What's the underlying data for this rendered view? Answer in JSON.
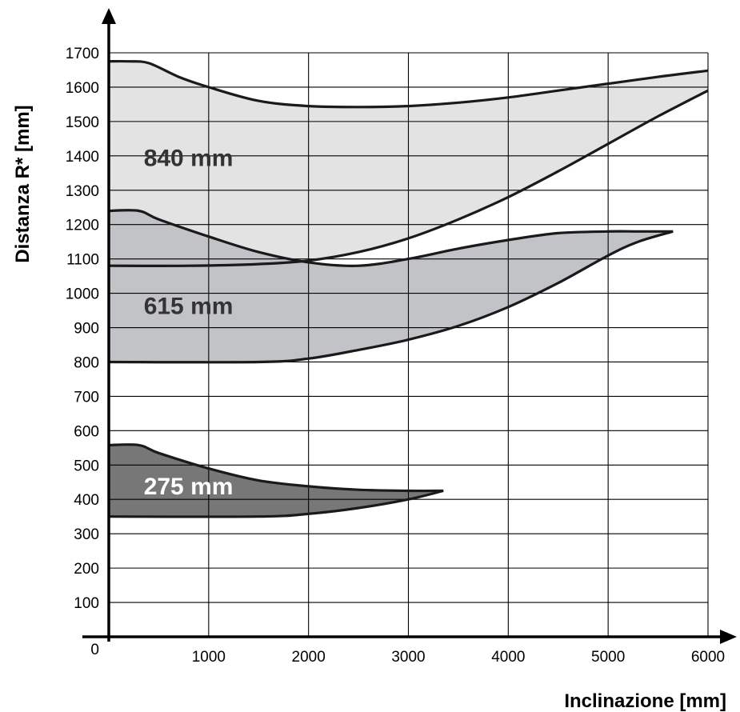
{
  "chart_data": {
    "type": "area",
    "title": "",
    "xlabel": "Inclinazione [mm]",
    "ylabel": "Distanza R* [mm]",
    "xlim": [
      0,
      6000
    ],
    "ylim": [
      0,
      1700
    ],
    "x_ticks": [
      1000,
      2000,
      3000,
      4000,
      5000,
      6000
    ],
    "y_ticks": [
      100,
      200,
      300,
      400,
      500,
      600,
      700,
      800,
      900,
      1000,
      1100,
      1200,
      1300,
      1400,
      1500,
      1600,
      1700
    ],
    "origin_label": "0",
    "grid": true,
    "colors": {
      "840": "#e3e3e3",
      "615": "#c2c3c7",
      "275": "#777777",
      "outline": "#1a1a1a",
      "grid": "#000000"
    },
    "series": [
      {
        "name": "840 mm",
        "upper": [
          [
            0,
            1675
          ],
          [
            200,
            1675
          ],
          [
            400,
            1670
          ],
          [
            700,
            1630
          ],
          [
            1000,
            1600
          ],
          [
            1500,
            1560
          ],
          [
            2000,
            1545
          ],
          [
            2500,
            1542
          ],
          [
            3000,
            1545
          ],
          [
            3500,
            1555
          ],
          [
            4000,
            1570
          ],
          [
            4500,
            1590
          ],
          [
            5000,
            1610
          ],
          [
            5500,
            1630
          ],
          [
            6000,
            1648
          ]
        ],
        "lower": [
          [
            0,
            1080
          ],
          [
            800,
            1080
          ],
          [
            1500,
            1085
          ],
          [
            2000,
            1095
          ],
          [
            2500,
            1120
          ],
          [
            3000,
            1160
          ],
          [
            3500,
            1215
          ],
          [
            4000,
            1280
          ],
          [
            4500,
            1355
          ],
          [
            5000,
            1435
          ],
          [
            5500,
            1515
          ],
          [
            6000,
            1590
          ]
        ]
      },
      {
        "name": "615 mm",
        "upper": [
          [
            0,
            1240
          ],
          [
            300,
            1240
          ],
          [
            500,
            1215
          ],
          [
            1000,
            1165
          ],
          [
            1500,
            1120
          ],
          [
            2000,
            1090
          ],
          [
            2500,
            1080
          ],
          [
            3000,
            1100
          ],
          [
            3500,
            1130
          ],
          [
            4000,
            1155
          ],
          [
            4500,
            1175
          ],
          [
            5000,
            1180
          ],
          [
            5300,
            1180
          ],
          [
            5650,
            1180
          ]
        ],
        "lower": [
          [
            0,
            800
          ],
          [
            1500,
            800
          ],
          [
            2000,
            810
          ],
          [
            2500,
            835
          ],
          [
            3000,
            865
          ],
          [
            3500,
            905
          ],
          [
            4000,
            960
          ],
          [
            4500,
            1030
          ],
          [
            5000,
            1110
          ],
          [
            5300,
            1150
          ],
          [
            5650,
            1180
          ]
        ]
      },
      {
        "name": "275 mm",
        "upper": [
          [
            0,
            558
          ],
          [
            300,
            558
          ],
          [
            500,
            535
          ],
          [
            1000,
            490
          ],
          [
            1500,
            455
          ],
          [
            2000,
            438
          ],
          [
            2500,
            428
          ],
          [
            3000,
            425
          ],
          [
            3350,
            425
          ]
        ],
        "lower": [
          [
            0,
            350
          ],
          [
            1500,
            350
          ],
          [
            2000,
            358
          ],
          [
            2500,
            375
          ],
          [
            3000,
            400
          ],
          [
            3350,
            425
          ]
        ]
      }
    ],
    "annotations": [
      {
        "text": "840 mm",
        "x": 350,
        "y": 1370,
        "color": "#333333"
      },
      {
        "text": "615 mm",
        "x": 350,
        "y": 940,
        "color": "#333333"
      },
      {
        "text": "275 mm",
        "x": 350,
        "y": 415,
        "color": "#ffffff"
      }
    ]
  }
}
